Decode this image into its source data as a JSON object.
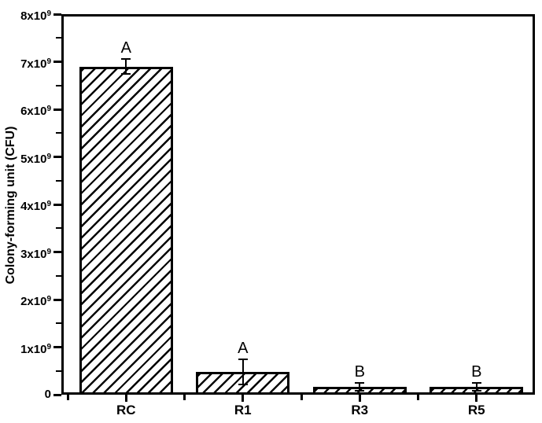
{
  "figure": {
    "background": "#ffffff",
    "axis_color": "#000000",
    "text_color": "#000000"
  },
  "chart_data": {
    "type": "bar",
    "title": "",
    "xlabel": "",
    "ylabel": "Colony-forming unit (CFU)",
    "categories": [
      "RC",
      "R1",
      "R3",
      "R5"
    ],
    "values": [
      6900000000.0,
      480000000.0,
      160000000.0,
      170000000.0
    ],
    "errors": [
      150000000.0,
      260000000.0,
      80000000.0,
      80000000.0
    ],
    "significance_labels": [
      "A",
      "A",
      "B",
      "B"
    ],
    "ylim": [
      0,
      8000000000.0
    ],
    "ytick_interval": 1000000000.0,
    "yminor_interval": 500000000.0,
    "ytick_labels": [
      {
        "base": "0",
        "exp": ""
      },
      {
        "base": "1x10",
        "exp": "9"
      },
      {
        "base": "2x10",
        "exp": "9"
      },
      {
        "base": "3x10",
        "exp": "9"
      },
      {
        "base": "4x10",
        "exp": "9"
      },
      {
        "base": "5x10",
        "exp": "9"
      },
      {
        "base": "6x10",
        "exp": "9"
      },
      {
        "base": "7x10",
        "exp": "9"
      },
      {
        "base": "8x10",
        "exp": "9"
      }
    ],
    "bar_width_fraction": 0.8,
    "layout": {
      "grid": false,
      "legend": false,
      "bar_fill": "diagonal-hatch",
      "stroke_color": "#000000",
      "background": "#ffffff"
    }
  }
}
